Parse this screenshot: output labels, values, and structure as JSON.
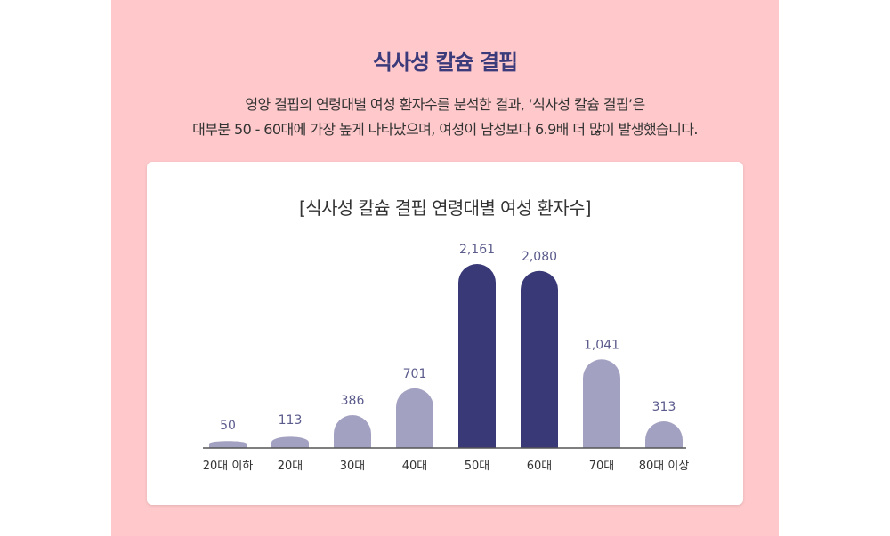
{
  "page": {
    "title": "식사성 칼슘 결핍",
    "desc_line1": "영양 결핍의 연령대별 여성 환자수를 분석한 결과, ‘식사성 칼슘 결핍’은",
    "desc_line2": "대부분 50 - 60대에 가장 높게 나타났으며, 여성이 남성보다 6.9배 더 많이 발생했습니다."
  },
  "colors": {
    "background": "#ffc9cb",
    "title": "#3b3a7a",
    "bar_normal": "#a3a1c1",
    "bar_highlight": "#393978",
    "axis": "#555555",
    "value_label": "#5b5b8c"
  },
  "chart_data": {
    "type": "bar",
    "title": "[식사성 칼슘 결핍 연령대별 여성 환자수]",
    "categories": [
      "20대 이하",
      "20대",
      "30대",
      "40대",
      "50대",
      "60대",
      "70대",
      "80대 이상"
    ],
    "values": [
      50,
      113,
      386,
      701,
      2161,
      2080,
      1041,
      313
    ],
    "value_labels": [
      "50",
      "113",
      "386",
      "701",
      "2,161",
      "2,080",
      "1,041",
      "313"
    ],
    "highlighted": [
      "50대",
      "60대"
    ],
    "xlabel": "",
    "ylabel": "",
    "grid": false,
    "legend": "none"
  }
}
